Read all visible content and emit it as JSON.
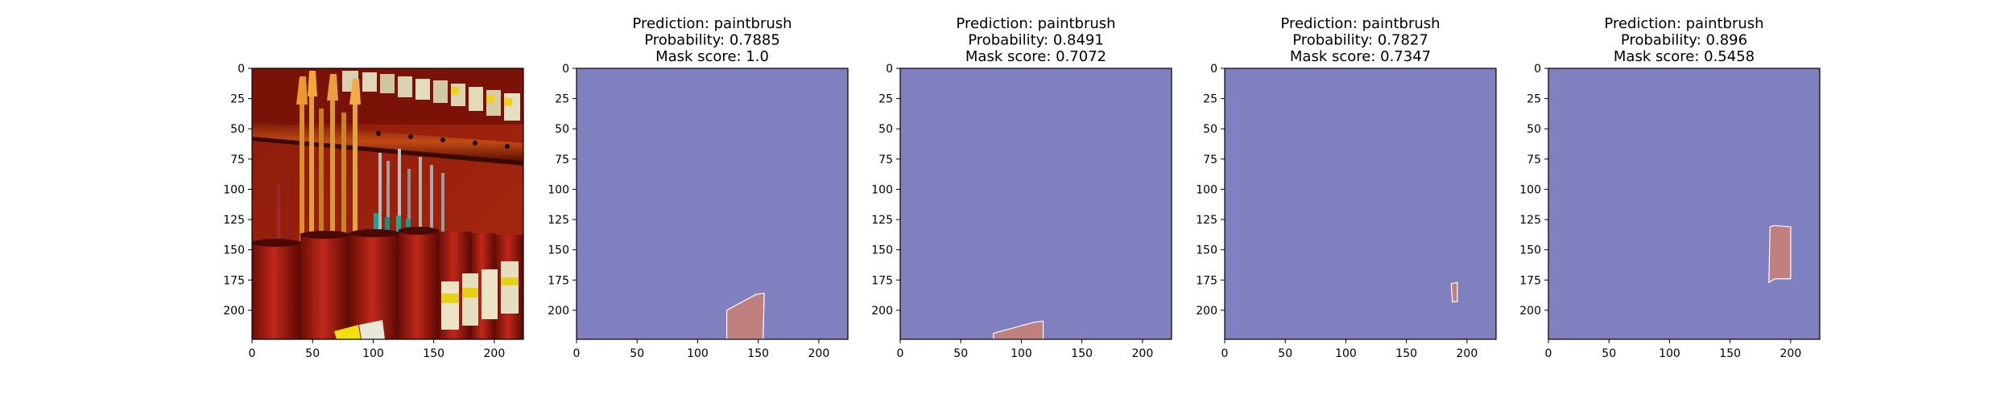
{
  "figure": {
    "background": "#ffffff"
  },
  "colors": {
    "mask_background": "#8080c0",
    "mask_region": "#c08080",
    "mask_edge": "#ffffff",
    "axis": "#000000"
  },
  "chart_data": [
    {
      "type": "image",
      "content": "photo of red paint cans with paintbrushes and labeled shelf",
      "xlim": [
        0,
        224
      ],
      "ylim": [
        224,
        0
      ],
      "x_ticks": [
        0,
        50,
        100,
        150,
        200
      ],
      "y_ticks": [
        0,
        25,
        50,
        75,
        100,
        125,
        150,
        175,
        200
      ]
    },
    {
      "type": "heatmap",
      "title_lines": [
        "Prediction: paintbrush",
        "Probability: 0.7885",
        "Mask score: 1.0"
      ],
      "xlim": [
        0,
        224
      ],
      "ylim": [
        224,
        0
      ],
      "x_ticks": [
        0,
        50,
        100,
        150,
        200
      ],
      "y_ticks": [
        0,
        25,
        50,
        75,
        100,
        125,
        150,
        175,
        200
      ],
      "mask_polygon": [
        [
          124,
          200
        ],
        [
          148,
          187
        ],
        [
          155,
          186
        ],
        [
          154,
          224
        ],
        [
          124,
          224
        ]
      ]
    },
    {
      "type": "heatmap",
      "title_lines": [
        "Prediction: paintbrush",
        "Probability: 0.8491",
        "Mask score: 0.7072"
      ],
      "xlim": [
        0,
        224
      ],
      "ylim": [
        224,
        0
      ],
      "x_ticks": [
        0,
        50,
        100,
        150,
        200
      ],
      "y_ticks": [
        0,
        25,
        50,
        75,
        100,
        125,
        150,
        175,
        200
      ],
      "mask_polygon": [
        [
          77,
          219
        ],
        [
          92,
          215
        ],
        [
          110,
          210
        ],
        [
          118,
          209
        ],
        [
          118,
          224
        ],
        [
          77,
          224
        ]
      ]
    },
    {
      "type": "heatmap",
      "title_lines": [
        "Prediction: paintbrush",
        "Probability: 0.7827",
        "Mask score: 0.7347"
      ],
      "xlim": [
        0,
        224
      ],
      "ylim": [
        224,
        0
      ],
      "x_ticks": [
        0,
        50,
        100,
        150,
        200
      ],
      "y_ticks": [
        0,
        25,
        50,
        75,
        100,
        125,
        150,
        175,
        200
      ],
      "mask_polygon": [
        [
          187,
          178
        ],
        [
          192,
          177
        ],
        [
          192,
          193
        ],
        [
          188,
          193
        ]
      ]
    },
    {
      "type": "heatmap",
      "title_lines": [
        "Prediction: paintbrush",
        "Probability: 0.896",
        "Mask score: 0.5458"
      ],
      "xlim": [
        0,
        224
      ],
      "ylim": [
        224,
        0
      ],
      "x_ticks": [
        0,
        50,
        100,
        150,
        200
      ],
      "y_ticks": [
        0,
        25,
        50,
        75,
        100,
        125,
        150,
        175,
        200
      ],
      "mask_polygon": [
        [
          183,
          131
        ],
        [
          186,
          130
        ],
        [
          200,
          131
        ],
        [
          200,
          174
        ],
        [
          187,
          174
        ],
        [
          182,
          177
        ]
      ]
    }
  ]
}
